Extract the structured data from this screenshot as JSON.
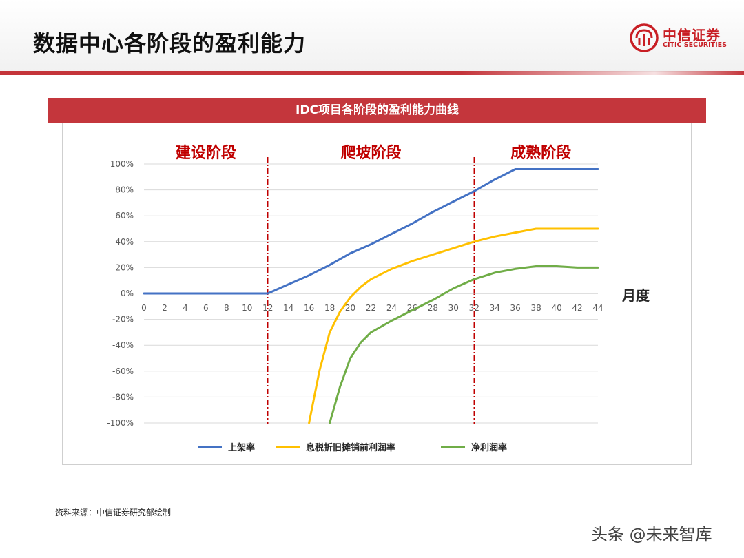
{
  "page": {
    "title": "数据中心各阶段的盈利能力",
    "source": "资料来源：中信证券研究部绘制",
    "watermark": "头条 @未来智库"
  },
  "logo": {
    "name_cn": "中信证券",
    "name_en": "CITIC SECURITIES",
    "brand_color": "#c81e24"
  },
  "chart_data": {
    "type": "line",
    "title": "IDC项目各阶段的盈利能力曲线",
    "xlabel": "月度",
    "ylabel": "",
    "x_ticks": [
      0,
      2,
      4,
      6,
      8,
      10,
      12,
      14,
      16,
      18,
      20,
      22,
      24,
      26,
      28,
      30,
      32,
      34,
      36,
      38,
      40,
      42,
      44
    ],
    "y_ticks": [
      "100%",
      "80%",
      "60%",
      "40%",
      "20%",
      "0%",
      "-20%",
      "-40%",
      "-60%",
      "-80%",
      "-100%"
    ],
    "xlim": [
      0,
      44
    ],
    "ylim": [
      -100,
      100
    ],
    "grid": "horizontal",
    "legend_position": "bottom",
    "phases": [
      {
        "label": "建设阶段",
        "x_start": 0,
        "x_end": 12
      },
      {
        "label": "爬坡阶段",
        "x_start": 12,
        "x_end": 32
      },
      {
        "label": "成熟阶段",
        "x_start": 32,
        "x_end": 44
      }
    ],
    "phase_boundaries": [
      12,
      32
    ],
    "series": [
      {
        "name": "上架率",
        "color": "#4472c4",
        "points": [
          [
            0,
            0
          ],
          [
            12,
            0
          ],
          [
            14,
            7
          ],
          [
            16,
            14
          ],
          [
            18,
            22
          ],
          [
            20,
            31
          ],
          [
            22,
            38
          ],
          [
            24,
            46
          ],
          [
            26,
            54
          ],
          [
            28,
            63
          ],
          [
            30,
            71
          ],
          [
            32,
            79
          ],
          [
            34,
            88
          ],
          [
            36,
            96
          ],
          [
            38,
            96
          ],
          [
            40,
            96
          ],
          [
            42,
            96
          ],
          [
            44,
            96
          ]
        ]
      },
      {
        "name": "息税折旧摊销前利润率",
        "color": "#ffc000",
        "points": [
          [
            16,
            -100
          ],
          [
            17,
            -60
          ],
          [
            18,
            -30
          ],
          [
            19,
            -14
          ],
          [
            20,
            -3
          ],
          [
            21,
            5
          ],
          [
            22,
            11
          ],
          [
            24,
            19
          ],
          [
            26,
            25
          ],
          [
            28,
            30
          ],
          [
            30,
            35
          ],
          [
            32,
            40
          ],
          [
            34,
            44
          ],
          [
            36,
            47
          ],
          [
            38,
            50
          ],
          [
            40,
            50
          ],
          [
            42,
            50
          ],
          [
            44,
            50
          ]
        ]
      },
      {
        "name": "净利润率",
        "color": "#70ad47",
        "points": [
          [
            18,
            -100
          ],
          [
            19,
            -72
          ],
          [
            20,
            -50
          ],
          [
            21,
            -38
          ],
          [
            22,
            -30
          ],
          [
            24,
            -21
          ],
          [
            26,
            -13
          ],
          [
            28,
            -5
          ],
          [
            30,
            4
          ],
          [
            32,
            11
          ],
          [
            34,
            16
          ],
          [
            36,
            19
          ],
          [
            38,
            21
          ],
          [
            40,
            21
          ],
          [
            42,
            20
          ],
          [
            44,
            20
          ]
        ]
      }
    ]
  }
}
